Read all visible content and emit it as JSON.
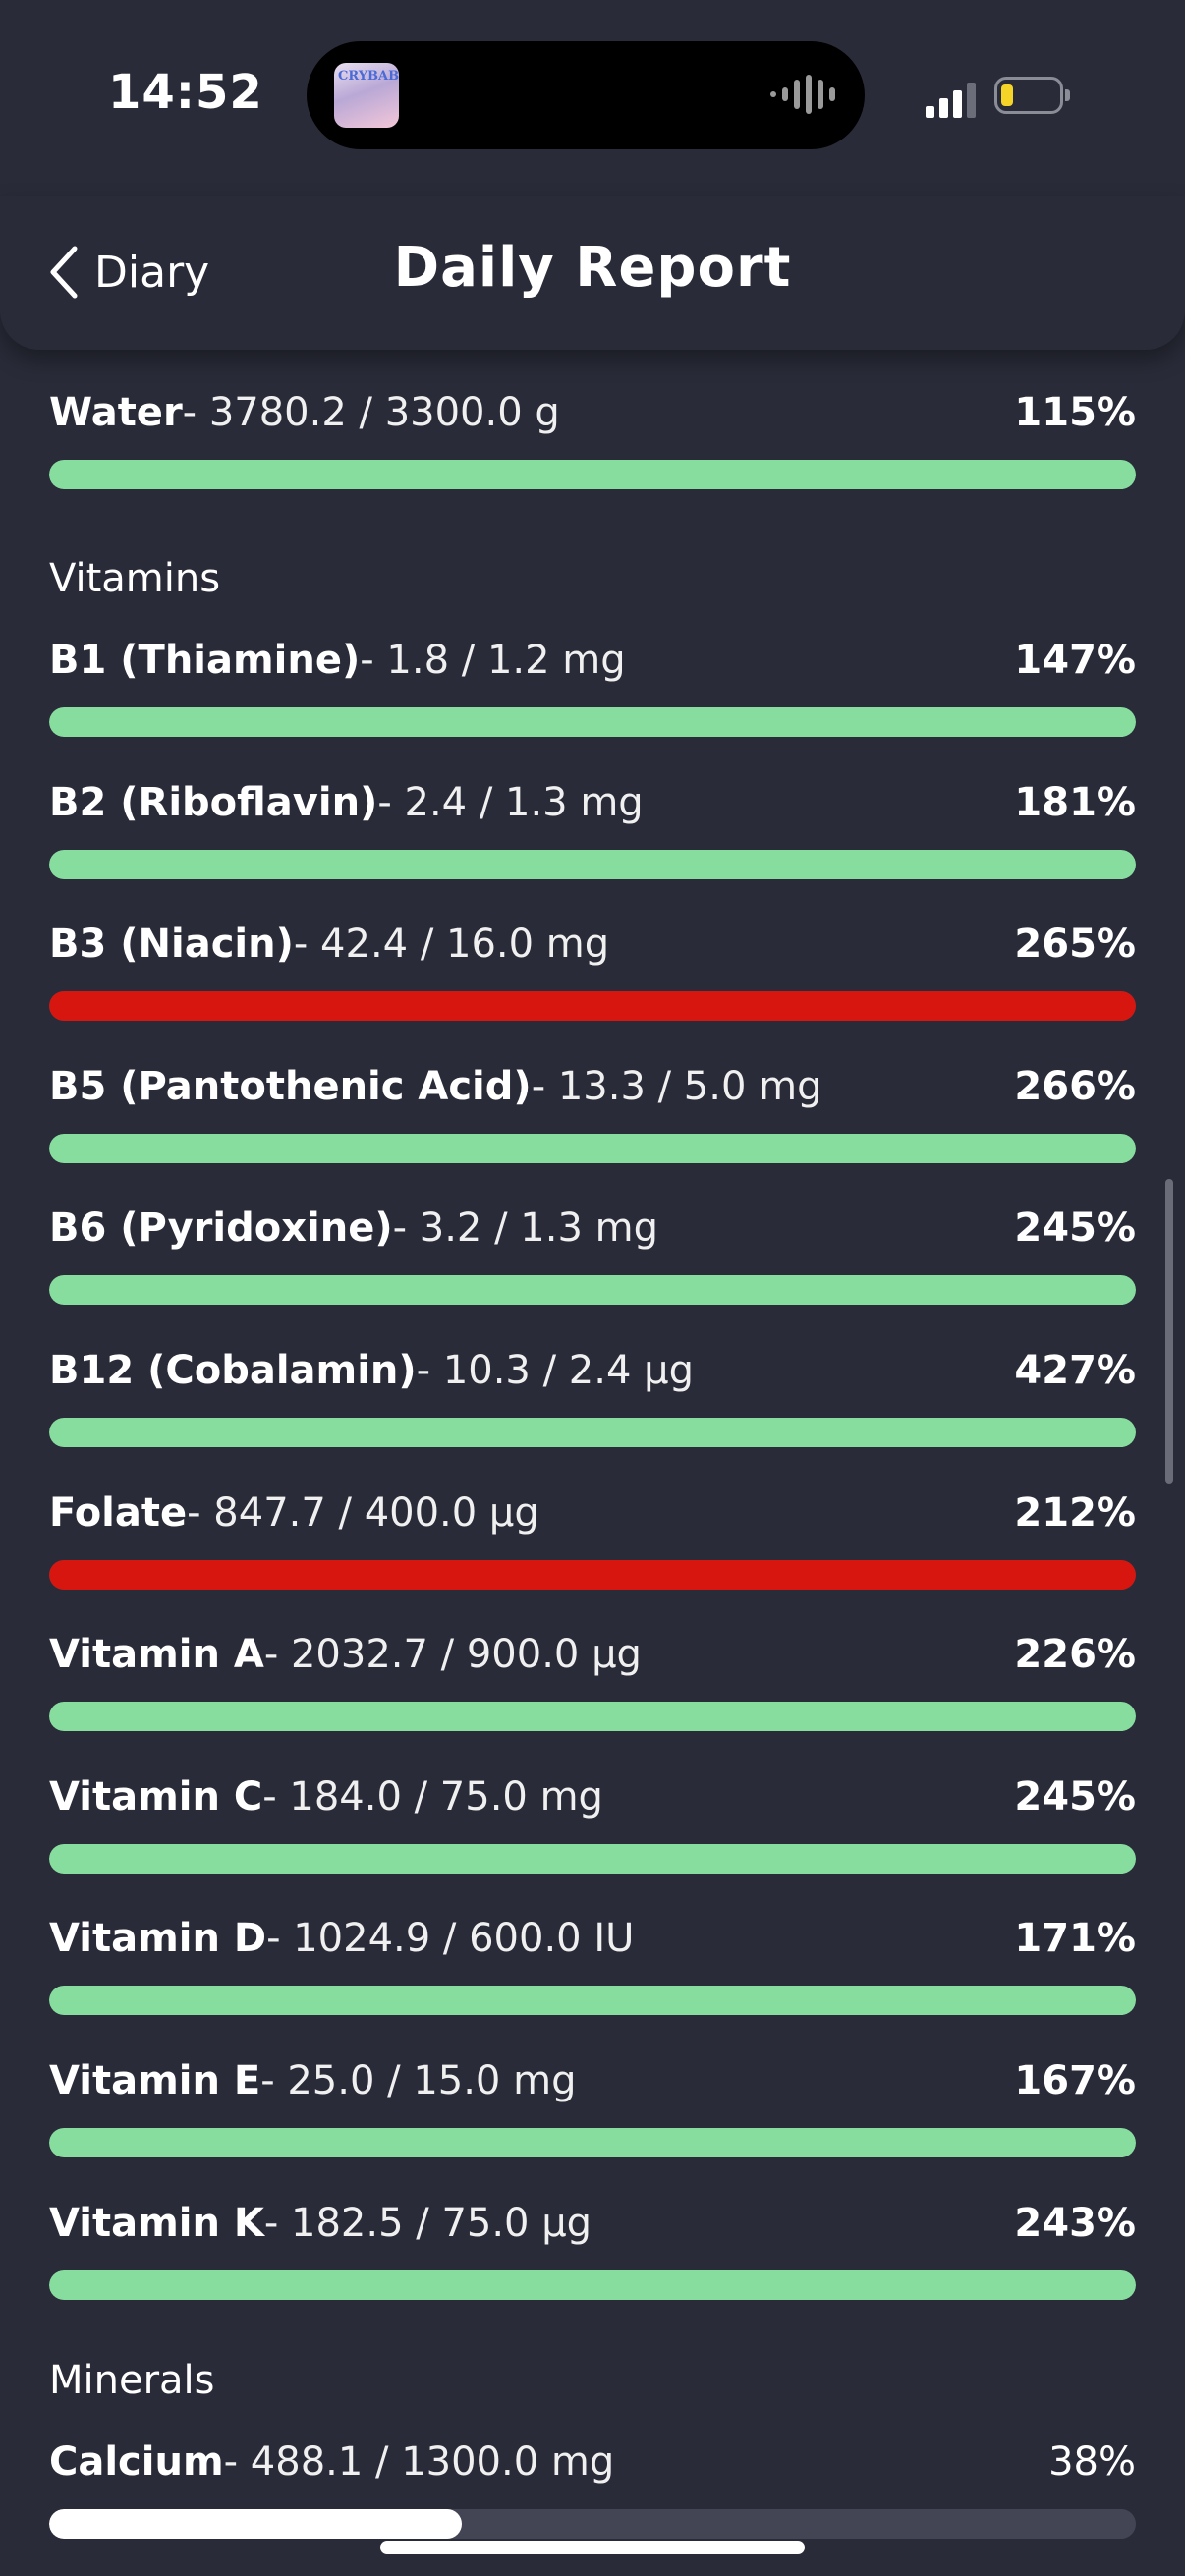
{
  "status_bar": {
    "time": "14:52",
    "album_art_text": "CRYBABY"
  },
  "nav": {
    "back_label": "Diary",
    "title": "Daily Report"
  },
  "colors": {
    "ok": "#86dd9e",
    "over": "#d6160f",
    "under": "#ffffff",
    "track": "#434554",
    "background": "#292b38"
  },
  "water": {
    "name": "Water",
    "amount": "- 3780.2 / 3300.0 g",
    "percent": "115%",
    "fraction": 1.0,
    "status": "ok"
  },
  "sections": {
    "vitamins": "Vitamins",
    "minerals": "Minerals"
  },
  "vitamins": [
    {
      "name": "B1 (Thiamine)",
      "amount": "- 1.8 / 1.2 mg",
      "percent": "147%",
      "fraction": 1.0,
      "status": "ok"
    },
    {
      "name": "B2 (Riboflavin)",
      "amount": "- 2.4 / 1.3 mg",
      "percent": "181%",
      "fraction": 1.0,
      "status": "ok"
    },
    {
      "name": "B3 (Niacin)",
      "amount": "- 42.4 / 16.0 mg",
      "percent": "265%",
      "fraction": 1.0,
      "status": "over"
    },
    {
      "name": "B5 (Pantothenic Acid)",
      "amount": "- 13.3 / 5.0 mg",
      "percent": "266%",
      "fraction": 1.0,
      "status": "ok"
    },
    {
      "name": "B6 (Pyridoxine)",
      "amount": "- 3.2 / 1.3 mg",
      "percent": "245%",
      "fraction": 1.0,
      "status": "ok"
    },
    {
      "name": "B12 (Cobalamin)",
      "amount": "- 10.3 / 2.4 µg",
      "percent": "427%",
      "fraction": 1.0,
      "status": "ok"
    },
    {
      "name": "Folate",
      "amount": "- 847.7 / 400.0 µg",
      "percent": "212%",
      "fraction": 1.0,
      "status": "over"
    },
    {
      "name": "Vitamin A",
      "amount": "- 2032.7 / 900.0 µg",
      "percent": "226%",
      "fraction": 1.0,
      "status": "ok"
    },
    {
      "name": "Vitamin C",
      "amount": "- 184.0 / 75.0 mg",
      "percent": "245%",
      "fraction": 1.0,
      "status": "ok"
    },
    {
      "name": "Vitamin D",
      "amount": "- 1024.9 / 600.0 IU",
      "percent": "171%",
      "fraction": 1.0,
      "status": "ok"
    },
    {
      "name": "Vitamin E",
      "amount": "- 25.0 / 15.0 mg",
      "percent": "167%",
      "fraction": 1.0,
      "status": "ok"
    },
    {
      "name": "Vitamin K",
      "amount": "- 182.5 / 75.0 µg",
      "percent": "243%",
      "fraction": 1.0,
      "status": "ok"
    }
  ],
  "minerals": [
    {
      "name": "Calcium",
      "amount": "- 488.1 / 1300.0 mg",
      "percent": "38%",
      "fraction": 0.38,
      "status": "under"
    }
  ]
}
